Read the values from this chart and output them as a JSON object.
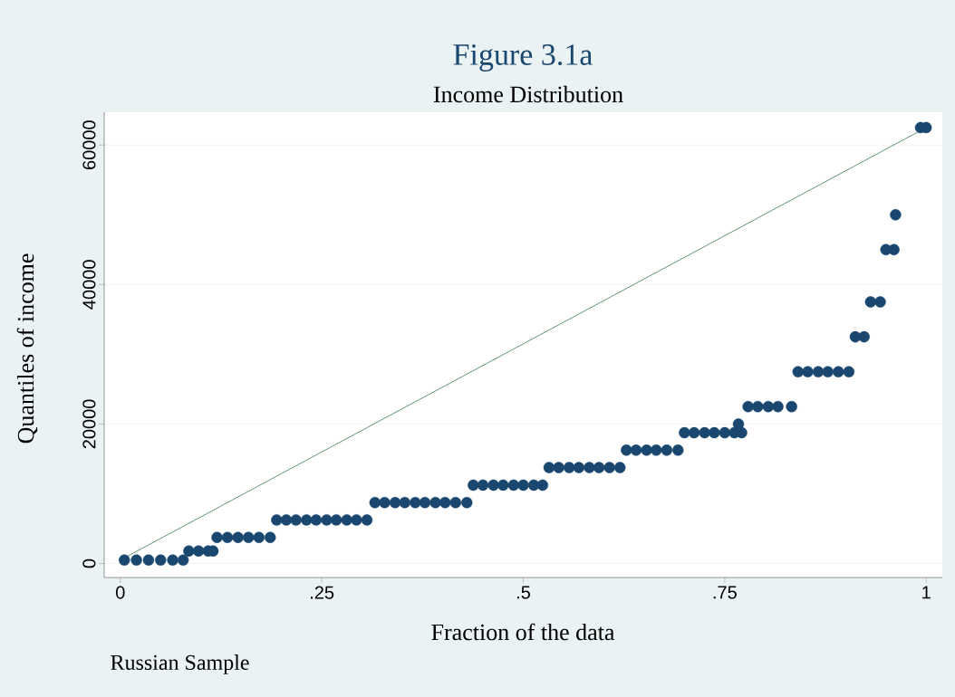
{
  "chart_data": {
    "type": "scatter",
    "title": "Figure 3.1a",
    "subtitle": "Income Distribution",
    "xlabel": "Fraction of the data",
    "ylabel": "Quantiles of income",
    "annotations": [
      "Russian Sample"
    ],
    "xlim": [
      -0.02,
      1.02
    ],
    "ylim": [
      -2000,
      64700
    ],
    "xticks": [
      0,
      {
        "value": 0.25,
        "label": ".25"
      },
      {
        "value": 0.5,
        "label": ".5"
      },
      {
        "value": 0.75,
        "label": ".75"
      },
      1
    ],
    "yticks": [
      0,
      20000,
      40000,
      60000
    ],
    "grid": "y",
    "series": [
      {
        "color": "#1a476f",
        "marker": "circle",
        "x": [
          0.005,
          0.02,
          0.035,
          0.05,
          0.065,
          0.078,
          0.085,
          0.097,
          0.109,
          0.115,
          0.12,
          0.133,
          0.146,
          0.159,
          0.172,
          0.186,
          0.194,
          0.206,
          0.218,
          0.231,
          0.243,
          0.256,
          0.268,
          0.281,
          0.293,
          0.306,
          0.316,
          0.328,
          0.341,
          0.353,
          0.366,
          0.378,
          0.391,
          0.403,
          0.416,
          0.43,
          0.438,
          0.45,
          0.463,
          0.475,
          0.488,
          0.5,
          0.513,
          0.524,
          0.532,
          0.544,
          0.557,
          0.569,
          0.582,
          0.594,
          0.607,
          0.62,
          0.628,
          0.64,
          0.653,
          0.665,
          0.678,
          0.692,
          0.7,
          0.712,
          0.725,
          0.737,
          0.75,
          0.762,
          0.771,
          0.767,
          0.779,
          0.791,
          0.804,
          0.816,
          0.833,
          0.841,
          0.853,
          0.866,
          0.878,
          0.891,
          0.904,
          0.912,
          0.923,
          0.931,
          0.943,
          0.95,
          0.96,
          0.962,
          0.993,
          1.0
        ],
        "values": [
          500,
          500,
          500,
          500,
          500,
          500,
          1800,
          1800,
          1800,
          1800,
          3750,
          3750,
          3750,
          3750,
          3750,
          3750,
          6250,
          6250,
          6250,
          6250,
          6250,
          6250,
          6250,
          6250,
          6250,
          6250,
          8750,
          8750,
          8750,
          8750,
          8750,
          8750,
          8750,
          8750,
          8750,
          8750,
          11250,
          11250,
          11250,
          11250,
          11250,
          11250,
          11250,
          11250,
          13750,
          13750,
          13750,
          13750,
          13750,
          13750,
          13750,
          13750,
          16250,
          16250,
          16250,
          16250,
          16250,
          16250,
          18750,
          18750,
          18750,
          18750,
          18750,
          18750,
          18750,
          20000,
          22500,
          22500,
          22500,
          22500,
          22500,
          27500,
          27500,
          27500,
          27500,
          27500,
          27500,
          32500,
          32500,
          37500,
          37500,
          45000,
          45000,
          50000,
          62500,
          62500
        ]
      },
      {
        "type": "line",
        "color": "#3a7a4e",
        "marker": "none",
        "x": [
          0,
          1
        ],
        "values": [
          500,
          62500
        ]
      }
    ]
  }
}
